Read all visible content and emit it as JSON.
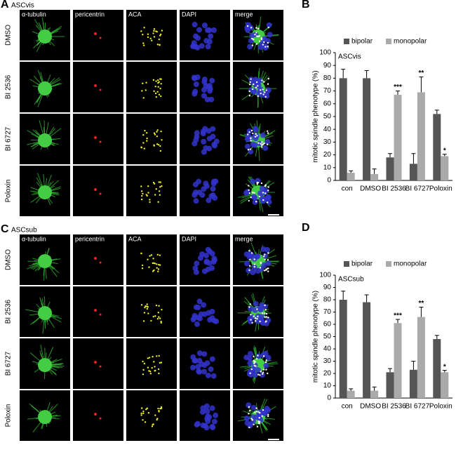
{
  "panels": [
    {
      "letter": "A",
      "title": "ASCvis",
      "columns": [
        "α-tubulin",
        "pericentrin",
        "ACA",
        "DAPI",
        "merge"
      ],
      "rows": [
        "DMSO",
        "BI 2536",
        "BI 6727",
        "Poloxin"
      ]
    },
    {
      "letter": "C",
      "title": "ASCsub",
      "columns": [
        "α-tubulin",
        "pericentrin",
        "ACA",
        "DAPI",
        "merge"
      ],
      "rows": [
        "DMSO",
        "BI 2536",
        "BI 6727",
        "Poloxin"
      ]
    }
  ],
  "chart_data": [
    {
      "type": "bar",
      "letter": "B",
      "subtitle": "ASCvis",
      "y_label": "mitotic spindle phenotype (%)",
      "categories": [
        "con",
        "DMSO",
        "BI 2536",
        "BI 6727",
        "Poloxin"
      ],
      "series": [
        {
          "name": "bipolar",
          "color": "#555555",
          "values": [
            80,
            80,
            18,
            13,
            52
          ],
          "errors": [
            7,
            6,
            3,
            8,
            3
          ]
        },
        {
          "name": "monopolar",
          "color": "#aaaaaa",
          "values": [
            6,
            5,
            67,
            69,
            19
          ],
          "errors": [
            1.5,
            4,
            3,
            12,
            1.5
          ],
          "marks": [
            null,
            null,
            "***",
            "**",
            "*"
          ]
        }
      ],
      "ylim": [
        0,
        100
      ],
      "yticks": [
        0,
        10,
        20,
        30,
        40,
        50,
        60,
        70,
        80,
        90,
        100
      ],
      "legend": "top"
    },
    {
      "type": "bar",
      "letter": "D",
      "subtitle": "ASCsub",
      "y_label": "mitotic spindle phenotype (%)",
      "categories": [
        "con",
        "DMSO",
        "BI 2536",
        "BI 6727",
        "Poloxin"
      ],
      "series": [
        {
          "name": "bipolar",
          "color": "#555555",
          "values": [
            80,
            78,
            21,
            23,
            48
          ],
          "errors": [
            7,
            6,
            3,
            7,
            3
          ]
        },
        {
          "name": "monopolar",
          "color": "#aaaaaa",
          "values": [
            6,
            6,
            61,
            66,
            21
          ],
          "errors": [
            1.5,
            3,
            3,
            8,
            1.5
          ],
          "marks": [
            null,
            null,
            "***",
            "**",
            "*"
          ]
        }
      ],
      "ylim": [
        0,
        100
      ],
      "yticks": [
        0,
        10,
        20,
        30,
        40,
        50,
        60,
        70,
        80,
        90,
        100
      ],
      "legend": "top"
    }
  ]
}
